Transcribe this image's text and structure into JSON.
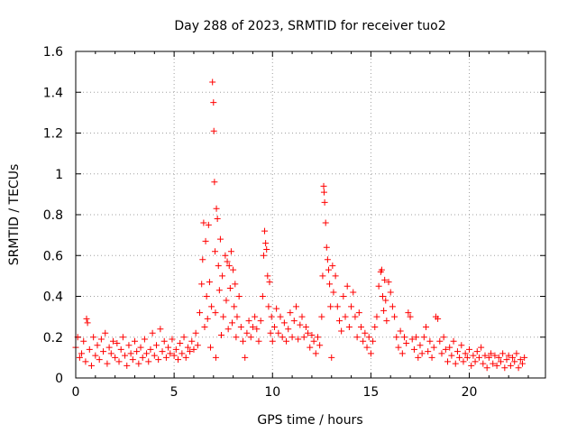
{
  "chart_data": {
    "type": "scatter",
    "title": "Day 288 of 2023, SRMTID for receiver tuo2",
    "xlabel": "GPS time / hours",
    "ylabel": "SRMTID / TECUs",
    "xlim": [
      0,
      23.87
    ],
    "ylim": [
      0,
      1.6
    ],
    "xticks": [
      0,
      5,
      10,
      15,
      20
    ],
    "yticks": [
      0,
      0.2,
      0.4,
      0.6,
      0.8,
      1,
      1.2,
      1.4,
      1.6
    ],
    "xtick_labels": [
      "0",
      "5",
      "10",
      "15",
      "20"
    ],
    "ytick_labels": [
      "0",
      "0.2",
      "0.4",
      "0.6",
      "0.8",
      "1",
      "1.2",
      "1.4",
      "1.6"
    ],
    "grid": true,
    "marker": "+",
    "color": "#ff0000",
    "series": [
      {
        "name": "SRMTID",
        "points": [
          [
            0.0,
            0.15
          ],
          [
            0.1,
            0.2
          ],
          [
            0.2,
            0.1
          ],
          [
            0.3,
            0.12
          ],
          [
            0.4,
            0.18
          ],
          [
            0.5,
            0.08
          ],
          [
            0.55,
            0.29
          ],
          [
            0.6,
            0.27
          ],
          [
            0.7,
            0.14
          ],
          [
            0.8,
            0.06
          ],
          [
            0.9,
            0.2
          ],
          [
            1.0,
            0.11
          ],
          [
            1.1,
            0.16
          ],
          [
            1.2,
            0.09
          ],
          [
            1.3,
            0.19
          ],
          [
            1.4,
            0.13
          ],
          [
            1.5,
            0.22
          ],
          [
            1.6,
            0.07
          ],
          [
            1.7,
            0.15
          ],
          [
            1.8,
            0.12
          ],
          [
            1.9,
            0.18
          ],
          [
            2.0,
            0.1
          ],
          [
            2.1,
            0.17
          ],
          [
            2.2,
            0.08
          ],
          [
            2.3,
            0.14
          ],
          [
            2.4,
            0.2
          ],
          [
            2.5,
            0.11
          ],
          [
            2.6,
            0.06
          ],
          [
            2.7,
            0.16
          ],
          [
            2.8,
            0.12
          ],
          [
            2.9,
            0.09
          ],
          [
            3.0,
            0.18
          ],
          [
            3.1,
            0.13
          ],
          [
            3.2,
            0.07
          ],
          [
            3.3,
            0.15
          ],
          [
            3.4,
            0.1
          ],
          [
            3.5,
            0.19
          ],
          [
            3.6,
            0.12
          ],
          [
            3.7,
            0.08
          ],
          [
            3.8,
            0.14
          ],
          [
            3.9,
            0.22
          ],
          [
            4.0,
            0.11
          ],
          [
            4.1,
            0.16
          ],
          [
            4.2,
            0.09
          ],
          [
            4.3,
            0.24
          ],
          [
            4.4,
            0.13
          ],
          [
            4.5,
            0.18
          ],
          [
            4.6,
            0.1
          ],
          [
            4.7,
            0.15
          ],
          [
            4.8,
            0.12
          ],
          [
            4.9,
            0.19
          ],
          [
            5.0,
            0.11
          ],
          [
            5.1,
            0.14
          ],
          [
            5.2,
            0.09
          ],
          [
            5.3,
            0.17
          ],
          [
            5.4,
            0.12
          ],
          [
            5.5,
            0.2
          ],
          [
            5.6,
            0.1
          ],
          [
            5.7,
            0.15
          ],
          [
            5.8,
            0.13
          ],
          [
            5.9,
            0.18
          ],
          [
            6.0,
            0.14
          ],
          [
            6.1,
            0.22
          ],
          [
            6.2,
            0.16
          ],
          [
            6.3,
            0.32
          ],
          [
            6.4,
            0.46
          ],
          [
            6.45,
            0.58
          ],
          [
            6.5,
            0.76
          ],
          [
            6.55,
            0.25
          ],
          [
            6.6,
            0.67
          ],
          [
            6.65,
            0.4
          ],
          [
            6.7,
            0.29
          ],
          [
            6.75,
            0.75
          ],
          [
            6.8,
            0.47
          ],
          [
            6.85,
            0.15
          ],
          [
            6.9,
            0.35
          ],
          [
            6.95,
            1.45
          ],
          [
            7.0,
            1.35
          ],
          [
            7.02,
            1.21
          ],
          [
            7.05,
            0.96
          ],
          [
            7.08,
            0.62
          ],
          [
            7.1,
            0.32
          ],
          [
            7.12,
            0.1
          ],
          [
            7.15,
            0.83
          ],
          [
            7.2,
            0.78
          ],
          [
            7.25,
            0.55
          ],
          [
            7.3,
            0.43
          ],
          [
            7.35,
            0.68
          ],
          [
            7.4,
            0.21
          ],
          [
            7.45,
            0.5
          ],
          [
            7.5,
            0.3
          ],
          [
            7.6,
            0.6
          ],
          [
            7.65,
            0.38
          ],
          [
            7.7,
            0.57
          ],
          [
            7.75,
            0.24
          ],
          [
            7.8,
            0.55
          ],
          [
            7.85,
            0.44
          ],
          [
            7.9,
            0.62
          ],
          [
            7.95,
            0.27
          ],
          [
            8.0,
            0.53
          ],
          [
            8.05,
            0.35
          ],
          [
            8.1,
            0.46
          ],
          [
            8.15,
            0.2
          ],
          [
            8.2,
            0.3
          ],
          [
            8.3,
            0.4
          ],
          [
            8.4,
            0.25
          ],
          [
            8.5,
            0.18
          ],
          [
            8.6,
            0.1
          ],
          [
            8.7,
            0.22
          ],
          [
            8.8,
            0.28
          ],
          [
            8.9,
            0.2
          ],
          [
            9.0,
            0.25
          ],
          [
            9.1,
            0.3
          ],
          [
            9.2,
            0.24
          ],
          [
            9.3,
            0.18
          ],
          [
            9.4,
            0.28
          ],
          [
            9.5,
            0.4
          ],
          [
            9.55,
            0.6
          ],
          [
            9.6,
            0.72
          ],
          [
            9.65,
            0.66
          ],
          [
            9.7,
            0.63
          ],
          [
            9.75,
            0.5
          ],
          [
            9.8,
            0.35
          ],
          [
            9.85,
            0.47
          ],
          [
            9.9,
            0.22
          ],
          [
            9.95,
            0.3
          ],
          [
            10.0,
            0.18
          ],
          [
            10.1,
            0.25
          ],
          [
            10.2,
            0.34
          ],
          [
            10.3,
            0.22
          ],
          [
            10.4,
            0.3
          ],
          [
            10.5,
            0.2
          ],
          [
            10.6,
            0.27
          ],
          [
            10.7,
            0.18
          ],
          [
            10.8,
            0.24
          ],
          [
            10.9,
            0.32
          ],
          [
            11.0,
            0.2
          ],
          [
            11.1,
            0.28
          ],
          [
            11.2,
            0.35
          ],
          [
            11.3,
            0.19
          ],
          [
            11.4,
            0.26
          ],
          [
            11.5,
            0.3
          ],
          [
            11.6,
            0.2
          ],
          [
            11.7,
            0.25
          ],
          [
            11.8,
            0.22
          ],
          [
            11.9,
            0.15
          ],
          [
            12.0,
            0.21
          ],
          [
            12.1,
            0.18
          ],
          [
            12.2,
            0.12
          ],
          [
            12.3,
            0.2
          ],
          [
            12.4,
            0.16
          ],
          [
            12.5,
            0.3
          ],
          [
            12.55,
            0.5
          ],
          [
            12.6,
            0.94
          ],
          [
            12.62,
            0.91
          ],
          [
            12.65,
            0.86
          ],
          [
            12.7,
            0.76
          ],
          [
            12.75,
            0.64
          ],
          [
            12.8,
            0.58
          ],
          [
            12.85,
            0.53
          ],
          [
            12.9,
            0.46
          ],
          [
            12.95,
            0.35
          ],
          [
            13.0,
            0.1
          ],
          [
            13.05,
            0.55
          ],
          [
            13.1,
            0.42
          ],
          [
            13.2,
            0.5
          ],
          [
            13.3,
            0.35
          ],
          [
            13.4,
            0.28
          ],
          [
            13.5,
            0.23
          ],
          [
            13.6,
            0.4
          ],
          [
            13.7,
            0.3
          ],
          [
            13.8,
            0.45
          ],
          [
            13.9,
            0.25
          ],
          [
            14.0,
            0.35
          ],
          [
            14.1,
            0.42
          ],
          [
            14.2,
            0.3
          ],
          [
            14.3,
            0.2
          ],
          [
            14.4,
            0.32
          ],
          [
            14.5,
            0.25
          ],
          [
            14.6,
            0.18
          ],
          [
            14.7,
            0.22
          ],
          [
            14.8,
            0.15
          ],
          [
            14.9,
            0.2
          ],
          [
            15.0,
            0.12
          ],
          [
            15.1,
            0.18
          ],
          [
            15.2,
            0.25
          ],
          [
            15.3,
            0.3
          ],
          [
            15.4,
            0.45
          ],
          [
            15.5,
            0.52
          ],
          [
            15.55,
            0.53
          ],
          [
            15.6,
            0.4
          ],
          [
            15.65,
            0.33
          ],
          [
            15.7,
            0.48
          ],
          [
            15.75,
            0.38
          ],
          [
            15.8,
            0.28
          ],
          [
            15.9,
            0.47
          ],
          [
            16.0,
            0.42
          ],
          [
            16.1,
            0.35
          ],
          [
            16.2,
            0.3
          ],
          [
            16.3,
            0.2
          ],
          [
            16.4,
            0.15
          ],
          [
            16.5,
            0.23
          ],
          [
            16.6,
            0.12
          ],
          [
            16.7,
            0.2
          ],
          [
            16.8,
            0.17
          ],
          [
            16.9,
            0.32
          ],
          [
            17.0,
            0.3
          ],
          [
            17.1,
            0.19
          ],
          [
            17.2,
            0.14
          ],
          [
            17.3,
            0.2
          ],
          [
            17.4,
            0.1
          ],
          [
            17.5,
            0.16
          ],
          [
            17.6,
            0.12
          ],
          [
            17.7,
            0.2
          ],
          [
            17.8,
            0.25
          ],
          [
            17.9,
            0.13
          ],
          [
            18.0,
            0.18
          ],
          [
            18.1,
            0.1
          ],
          [
            18.2,
            0.15
          ],
          [
            18.3,
            0.3
          ],
          [
            18.4,
            0.29
          ],
          [
            18.5,
            0.18
          ],
          [
            18.6,
            0.12
          ],
          [
            18.7,
            0.2
          ],
          [
            18.8,
            0.14
          ],
          [
            18.9,
            0.08
          ],
          [
            19.0,
            0.15
          ],
          [
            19.1,
            0.11
          ],
          [
            19.2,
            0.18
          ],
          [
            19.3,
            0.07
          ],
          [
            19.4,
            0.13
          ],
          [
            19.5,
            0.1
          ],
          [
            19.6,
            0.16
          ],
          [
            19.7,
            0.08
          ],
          [
            19.8,
            0.12
          ],
          [
            19.9,
            0.1
          ],
          [
            20.0,
            0.14
          ],
          [
            20.1,
            0.06
          ],
          [
            20.2,
            0.11
          ],
          [
            20.3,
            0.08
          ],
          [
            20.4,
            0.13
          ],
          [
            20.5,
            0.1
          ],
          [
            20.6,
            0.15
          ],
          [
            20.7,
            0.07
          ],
          [
            20.8,
            0.11
          ],
          [
            20.9,
            0.05
          ],
          [
            21.0,
            0.1
          ],
          [
            21.1,
            0.12
          ],
          [
            21.2,
            0.07
          ],
          [
            21.3,
            0.11
          ],
          [
            21.4,
            0.06
          ],
          [
            21.5,
            0.1
          ],
          [
            21.6,
            0.08
          ],
          [
            21.7,
            0.12
          ],
          [
            21.8,
            0.05
          ],
          [
            21.9,
            0.09
          ],
          [
            22.0,
            0.11
          ],
          [
            22.1,
            0.06
          ],
          [
            22.2,
            0.1
          ],
          [
            22.3,
            0.08
          ],
          [
            22.4,
            0.12
          ],
          [
            22.5,
            0.05
          ],
          [
            22.6,
            0.09
          ],
          [
            22.7,
            0.07
          ],
          [
            22.8,
            0.1
          ]
        ]
      }
    ]
  }
}
